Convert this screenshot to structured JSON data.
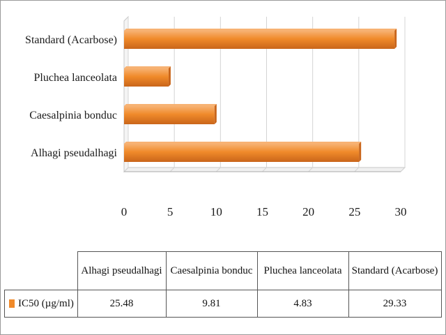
{
  "colors": {
    "bar": "#f08a2a",
    "bar_dark": "#c9651a",
    "bar_light": "#f7b273",
    "grid": "#d4d4d4"
  },
  "chart_data": {
    "type": "bar",
    "orientation": "horizontal",
    "categories": [
      "Alhagi pseudalhagi",
      "Caesalpinia bonduc",
      "Pluchea lanceolata",
      "Standard (Acarbose)"
    ],
    "series": [
      {
        "name": "IC50 (µg/ml)",
        "values": [
          25.48,
          9.81,
          4.83,
          29.33
        ]
      }
    ],
    "xlim": [
      0,
      30
    ],
    "xticks": [
      "0",
      "5",
      "10",
      "15",
      "20",
      "25",
      "30"
    ],
    "grid": true,
    "legend": "data-table"
  },
  "table": {
    "headers": [
      "Alhagi pseudalhagi",
      "Caesalpinia bonduc",
      "Pluchea lanceolata",
      "Standard (Acarbose)"
    ],
    "row_label": "IC50 (µg/ml)",
    "values": [
      "25.48",
      "9.81",
      "4.83",
      "29.33"
    ]
  }
}
